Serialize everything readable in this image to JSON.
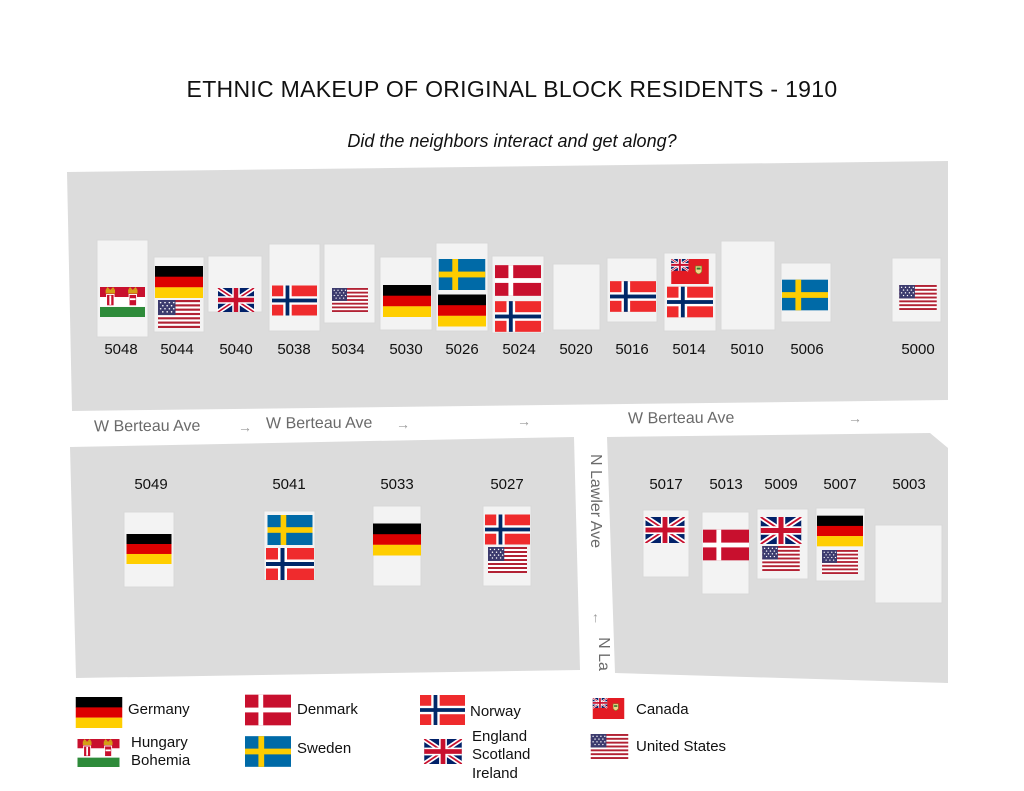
{
  "title": "ETHNIC MAKEUP OF ORIGINAL BLOCK RESIDENTS - 1910",
  "subtitle": "Did the neighbors interact and get along?",
  "streets": {
    "berteau_1": "W Berteau Ave",
    "berteau_2": "W Berteau Ave",
    "berteau_3": "W Berteau Ave",
    "lawler_1": "N Lawler Ave",
    "lawler_2": "N La"
  },
  "north_addresses": [
    "5048",
    "5044",
    "5040",
    "5038",
    "5034",
    "5030",
    "5026",
    "5024",
    "5020",
    "5016",
    "5014",
    "5010",
    "5006",
    "5000"
  ],
  "south_addresses": [
    "5049",
    "5041",
    "5033",
    "5027",
    "5017",
    "5013",
    "5009",
    "5007",
    "5003"
  ],
  "legend": {
    "germany": "Germany",
    "hungary": "Hungary",
    "bohemia": "Bohemia",
    "denmark": "Denmark",
    "sweden": "Sweden",
    "norway": "Norway",
    "uk_1": "England",
    "uk_2": "Scotland",
    "uk_3": "Ireland",
    "canada": "Canada",
    "usa": "United States"
  },
  "colors": {
    "block": "#dcdcdc",
    "road": "#ffffff",
    "house": "#f3f3f3"
  }
}
